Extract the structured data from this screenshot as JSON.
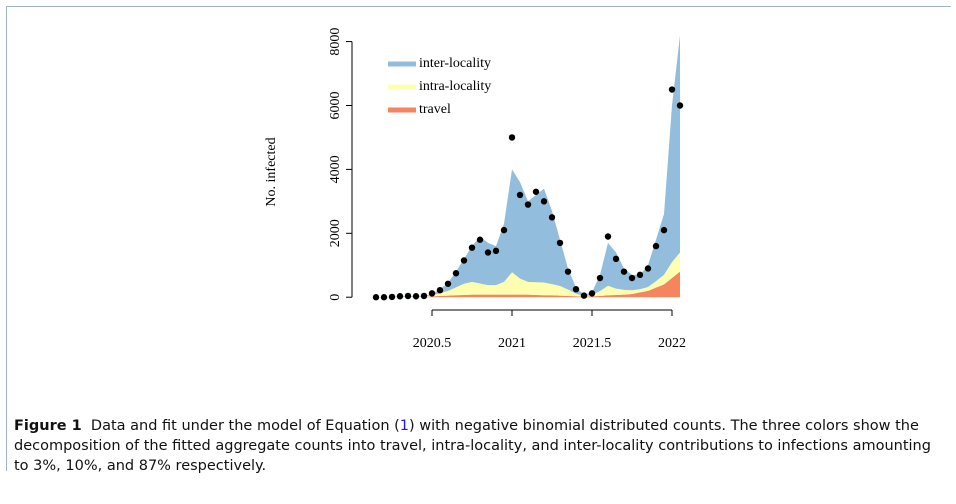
{
  "chart_data": {
    "type": "stacked_area",
    "ylabel": "No. infected",
    "x": [
      2020.15,
      2020.2,
      2020.25,
      2020.3,
      2020.35,
      2020.4,
      2020.45,
      2020.5,
      2020.55,
      2020.6,
      2020.65,
      2020.7,
      2020.75,
      2020.8,
      2020.85,
      2020.9,
      2020.95,
      2021.0,
      2021.05,
      2021.1,
      2021.15,
      2021.2,
      2021.25,
      2021.3,
      2021.35,
      2021.4,
      2021.45,
      2021.5,
      2021.55,
      2021.6,
      2021.65,
      2021.7,
      2021.75,
      2021.8,
      2021.85,
      2021.9,
      2021.95,
      2022.0,
      2022.05
    ],
    "series": [
      {
        "name": "travel",
        "color": "#f4855e",
        "values": [
          0,
          0,
          0,
          0,
          0,
          0,
          0,
          30,
          40,
          50,
          60,
          70,
          80,
          80,
          80,
          80,
          80,
          80,
          80,
          80,
          70,
          60,
          60,
          50,
          40,
          30,
          20,
          30,
          40,
          60,
          70,
          80,
          100,
          150,
          200,
          300,
          400,
          600,
          800
        ]
      },
      {
        "name": "intra-locality",
        "color": "#ffffb0",
        "values": [
          0,
          5,
          10,
          15,
          20,
          20,
          20,
          40,
          80,
          150,
          250,
          350,
          400,
          350,
          300,
          300,
          400,
          700,
          500,
          400,
          400,
          400,
          350,
          300,
          200,
          80,
          20,
          40,
          150,
          300,
          200,
          150,
          120,
          100,
          120,
          200,
          300,
          500,
          600
        ]
      },
      {
        "name": "inter-locality",
        "color": "#92bddc",
        "values": [
          0,
          5,
          10,
          15,
          20,
          20,
          30,
          30,
          130,
          250,
          490,
          780,
          1120,
          1470,
          1320,
          1220,
          1820,
          3220,
          3020,
          2520,
          2730,
          2940,
          2290,
          1450,
          660,
          190,
          40,
          80,
          510,
          1340,
          1130,
          670,
          480,
          450,
          680,
          1300,
          1900,
          4900,
          6800
        ]
      }
    ],
    "points": {
      "color": "#000000",
      "values": [
        0,
        0,
        10,
        30,
        40,
        30,
        40,
        120,
        220,
        420,
        750,
        1150,
        1550,
        1800,
        1400,
        1450,
        2100,
        5000,
        3200,
        2900,
        3300,
        3000,
        2500,
        1700,
        800,
        250,
        50,
        120,
        600,
        1900,
        1200,
        800,
        600,
        700,
        900,
        1600,
        2100,
        6500,
        6000
      ]
    },
    "xlim": [
      2020.0,
      2022.1
    ],
    "xticks": [
      2020.5,
      2021.0,
      2021.5,
      2022.0
    ],
    "ylim": [
      -400,
      8300
    ],
    "yticks": [
      0,
      2000,
      4000,
      6000,
      8000
    ],
    "legend": "top-left"
  },
  "caption": {
    "label": "Figure 1",
    "text_before": "Data and fit under the model of Equation (",
    "ref": "1",
    "text_after": ") with negative binomial distributed counts. The three colors show the decomposition of the fitted aggregate counts into travel, intra-locality, and inter-locality contributions to infections amounting to 3%, 10%, and 87% respectively."
  }
}
